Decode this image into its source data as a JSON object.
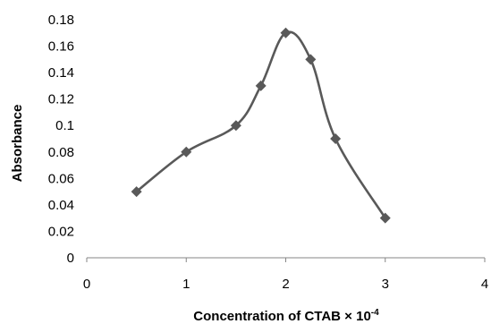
{
  "chart_data": {
    "type": "line",
    "title": "",
    "xlabel": "Concentration of CTAB × 10",
    "xlabel_superscript": "-4",
    "ylabel": "Absorbance",
    "xlim": [
      0,
      4
    ],
    "ylim": [
      0,
      0.18
    ],
    "x_ticks": [
      "0",
      "1",
      "2",
      "3",
      "4"
    ],
    "y_ticks": [
      "0",
      "0.02",
      "0.04",
      "0.06",
      "0.08",
      "0.1",
      "0.12",
      "0.14",
      "0.16",
      "0.18"
    ],
    "grid": false,
    "legend": "none",
    "smooth": true,
    "marker": "diamond",
    "line_color": "#595959",
    "series": [
      {
        "x": [
          0.5,
          1.0,
          1.5,
          1.75,
          2.0,
          2.25,
          2.5,
          3.0
        ],
        "y": [
          0.05,
          0.08,
          0.1,
          0.13,
          0.17,
          0.15,
          0.09,
          0.03
        ]
      }
    ]
  }
}
